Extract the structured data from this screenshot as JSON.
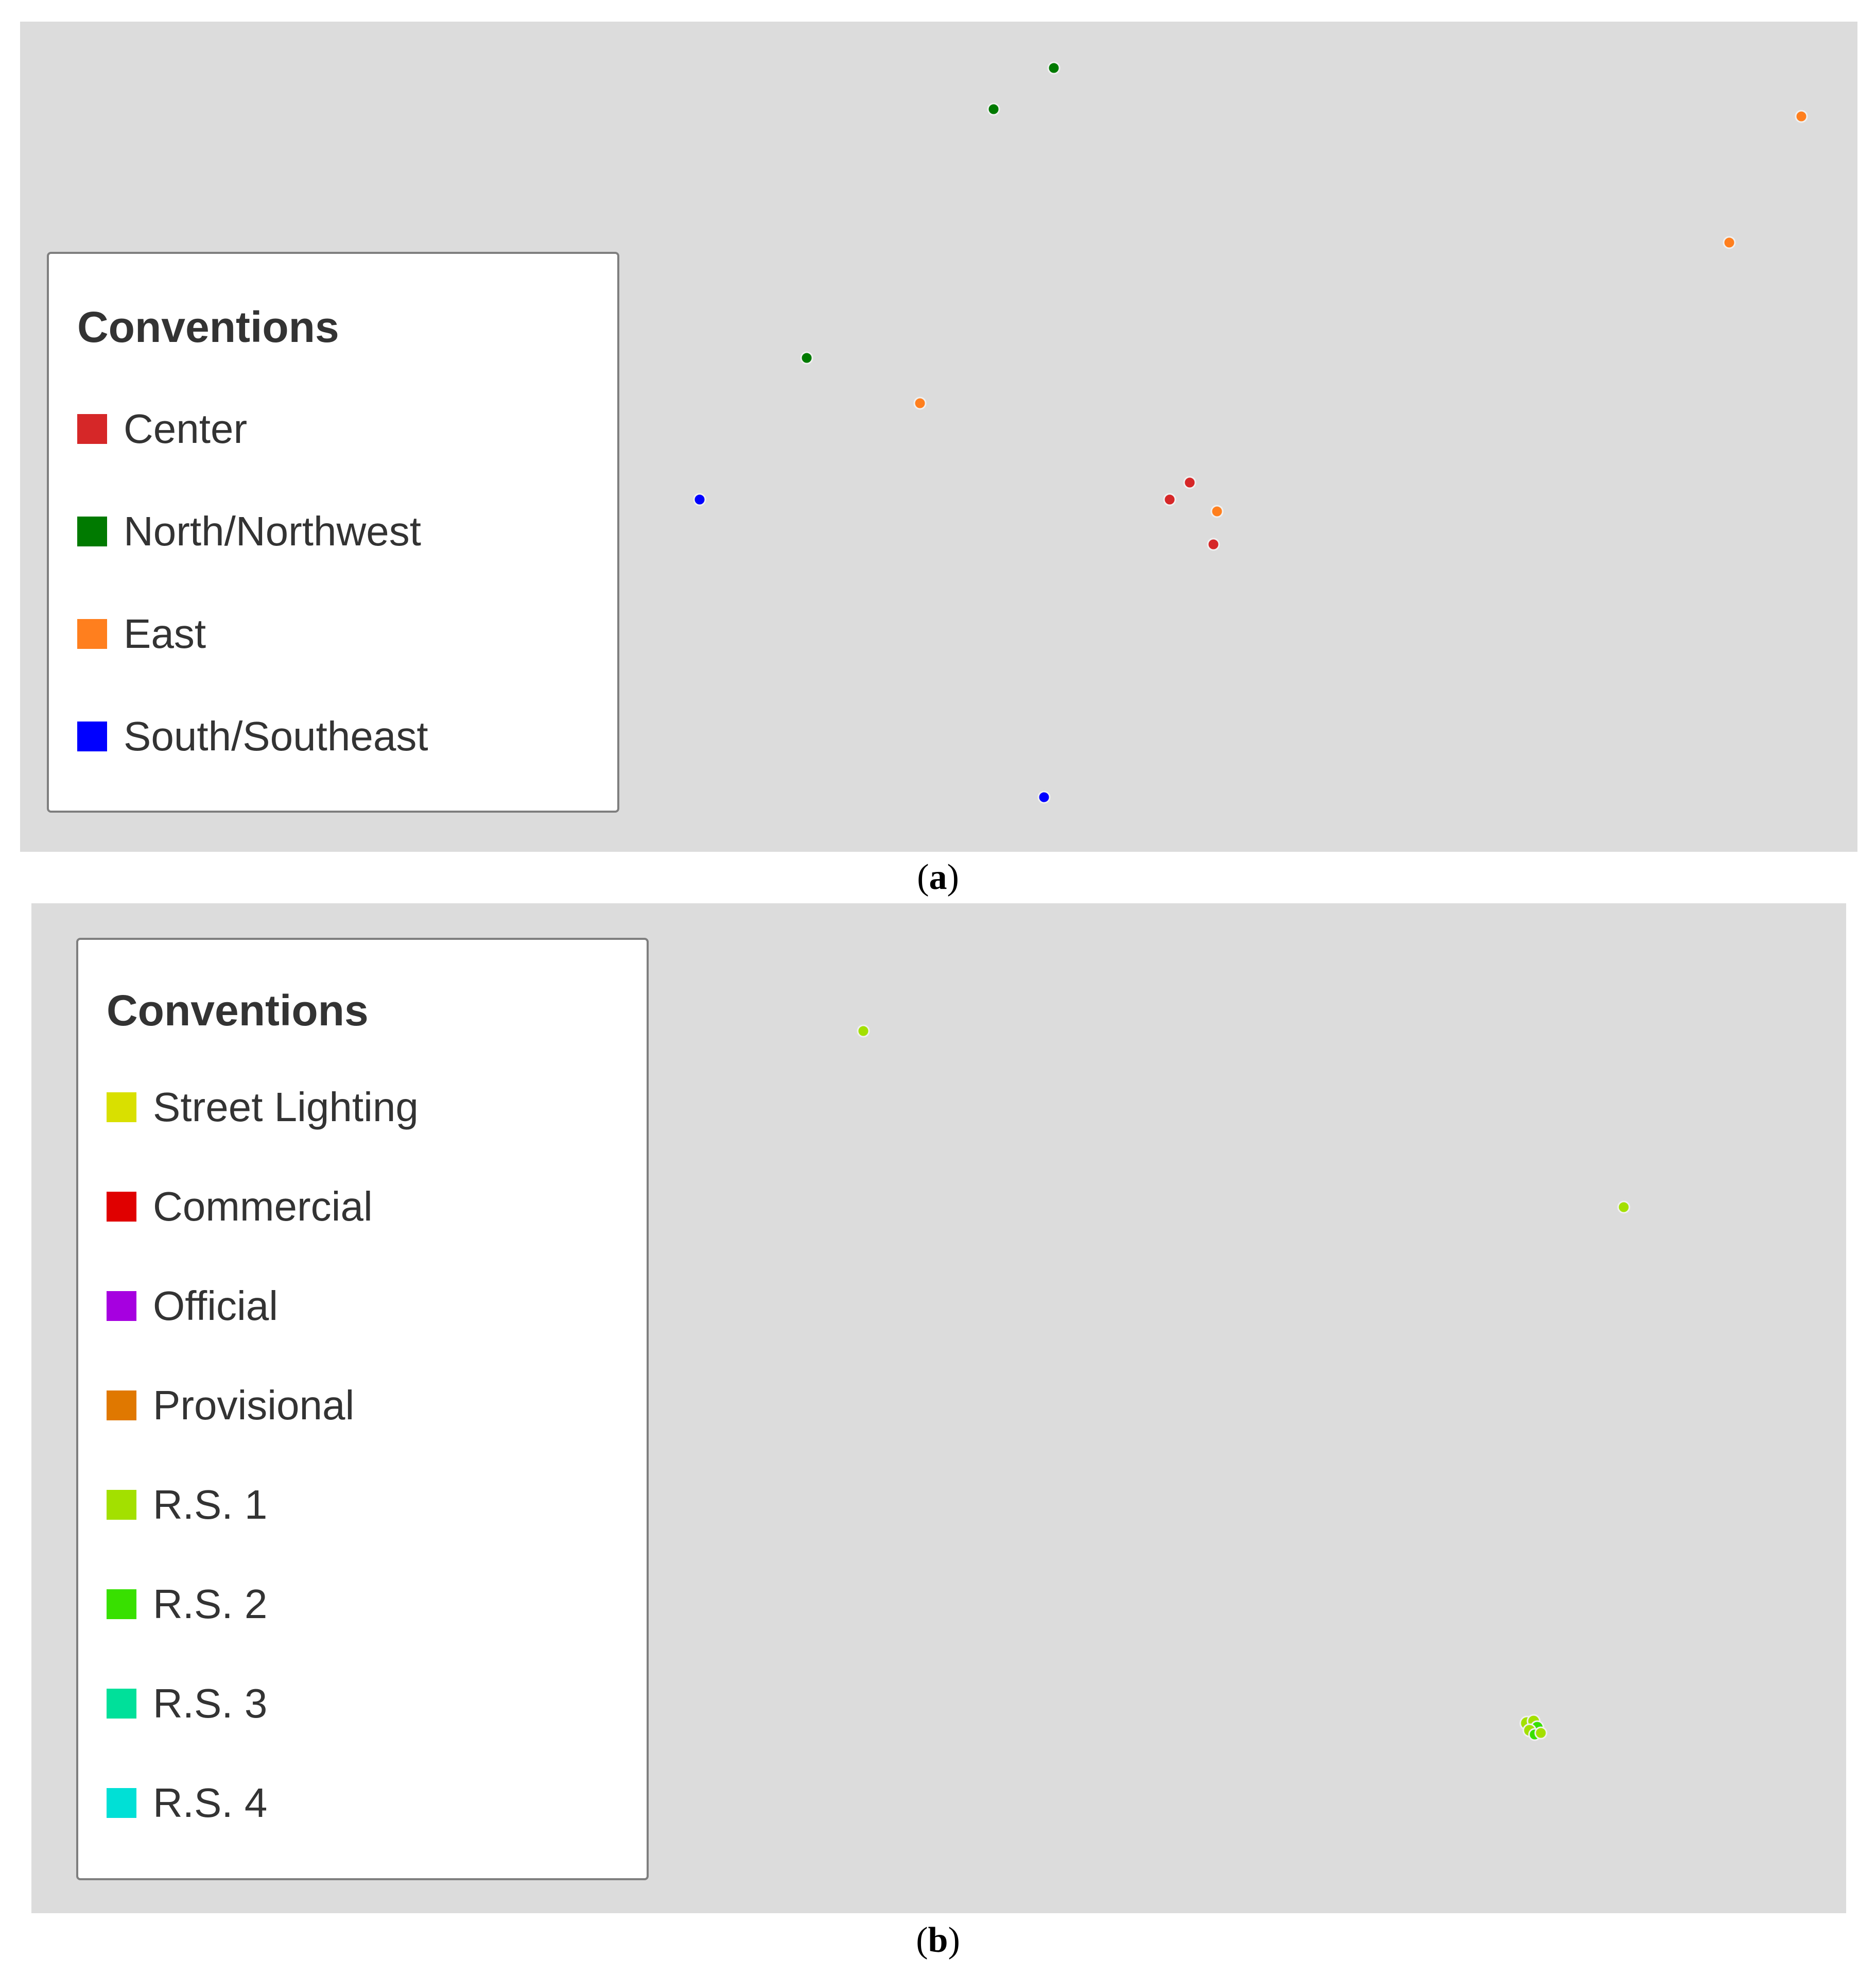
{
  "panel_a": {
    "legend": {
      "title": "Conventions",
      "items": [
        {
          "label": "Center",
          "color": "#d62728"
        },
        {
          "label": "North/Northwest",
          "color": "#007a00"
        },
        {
          "label": "East",
          "color": "#ff7f1e"
        },
        {
          "label": "South/Southeast",
          "color": "#0000ff"
        }
      ]
    },
    "caption_open": "(",
    "caption_letter": "a",
    "caption_close": ")"
  },
  "panel_b": {
    "legend": {
      "title": "Conventions",
      "items": [
        {
          "label": "Street Lighting",
          "color": "#d9e000"
        },
        {
          "label": "Commercial",
          "color": "#e00000"
        },
        {
          "label": "Official",
          "color": "#a600e0"
        },
        {
          "label": "Provisional",
          "color": "#e07800"
        },
        {
          "label": "R.S. 1",
          "color": "#a3e000"
        },
        {
          "label": "R.S. 2",
          "color": "#38e000"
        },
        {
          "label": "R.S. 3",
          "color": "#00e09a"
        },
        {
          "label": "R.S. 4",
          "color": "#00e0d6"
        }
      ]
    },
    "caption_open": "(",
    "caption_letter": "b",
    "caption_close": ")"
  }
}
